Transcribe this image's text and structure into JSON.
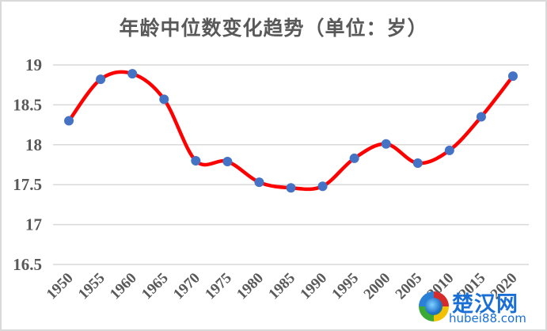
{
  "chart_data": {
    "type": "line",
    "title": "年龄中位数变化趋势（单位：岁）",
    "xlabel": "",
    "ylabel": "",
    "categories": [
      "1950",
      "1955",
      "1960",
      "1965",
      "1970",
      "1975",
      "1980",
      "1985",
      "1990",
      "1995",
      "2000",
      "2005",
      "2010",
      "2015",
      "2020"
    ],
    "series": [
      {
        "name": "年龄中位数",
        "values": [
          18.3,
          18.82,
          18.89,
          18.57,
          17.8,
          17.79,
          17.53,
          17.46,
          17.48,
          17.83,
          18.01,
          17.77,
          17.93,
          18.35,
          18.86
        ],
        "line_color": "#ff0000",
        "marker_color": "#4472c4",
        "smooth": true
      }
    ],
    "ylim": [
      16.5,
      19
    ],
    "yticks": [
      "19",
      "18.5",
      "18",
      "17.5",
      "17",
      "16.5"
    ],
    "grid": true,
    "legend": null
  },
  "watermark": {
    "cn": "楚汉网",
    "en": "hubei88.com"
  },
  "colors": {
    "line": "#ff0000",
    "marker": "#4472c4",
    "grid": "#d9d9d9",
    "text": "#595959"
  }
}
